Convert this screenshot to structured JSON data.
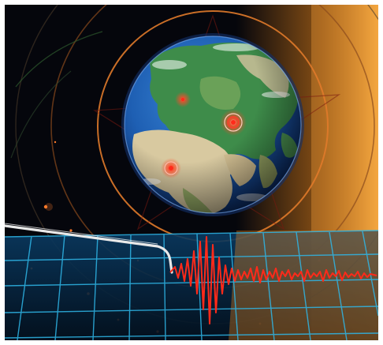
{
  "colors": {
    "space": "#05060c",
    "ocean": "#1e62b8",
    "land_green": "#3e8c4a",
    "land_desert": "#d8c9a0",
    "orange_glow": "#f08a1c",
    "grid_blue": "#2fb7e8",
    "trace_red": "#ff2a1a",
    "epicenter": "#ff3b2a",
    "probe": "#e9e9e9"
  },
  "epicenters": [
    {
      "name": "epicenter-asia"
    },
    {
      "name": "epicenter-europe"
    },
    {
      "name": "epicenter-africa"
    }
  ]
}
